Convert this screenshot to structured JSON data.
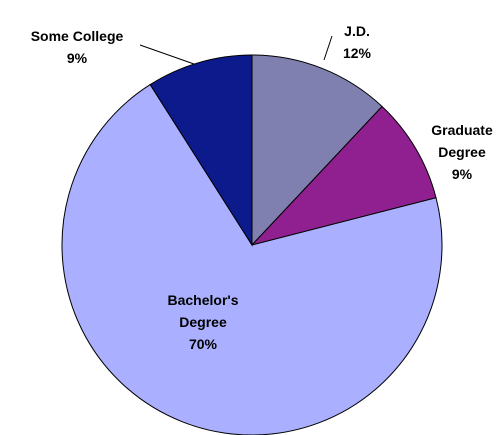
{
  "chart_data": {
    "type": "pie",
    "categories": [
      "J.D.",
      "Graduate Degree",
      "Bachelor's Degree",
      "Some College"
    ],
    "values": [
      12,
      9,
      70,
      9
    ],
    "value_labels": [
      "12%",
      "9%",
      "70%",
      "9%"
    ],
    "colors": [
      "#8080b0",
      "#90208f",
      "#aab0ff",
      "#0c1a8c"
    ]
  }
}
